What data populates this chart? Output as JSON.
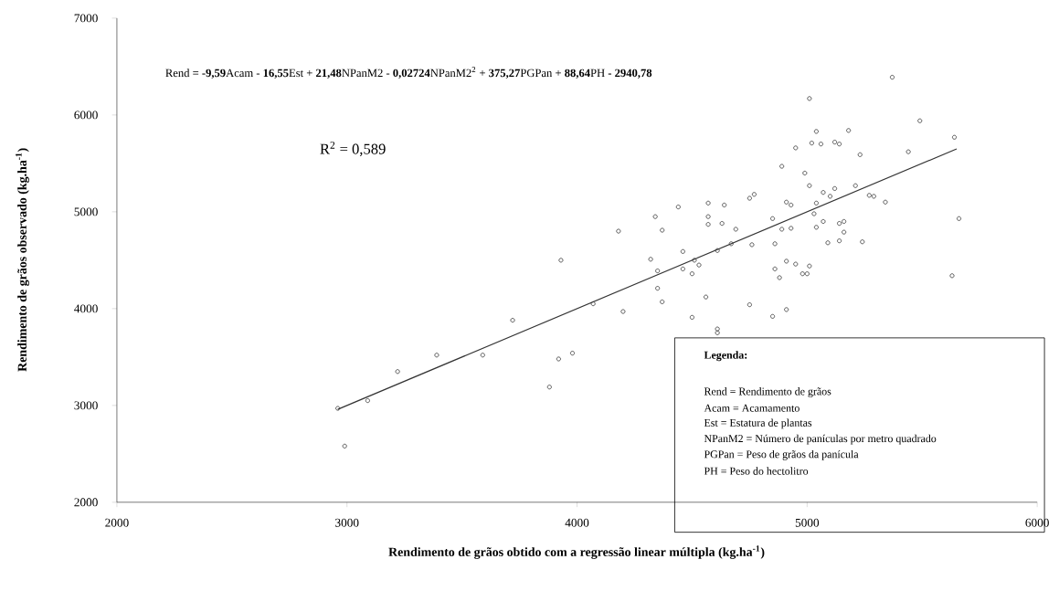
{
  "chart_data": {
    "type": "scatter",
    "xlabel": "Rendimento de grãos obtido com a regressão linear múltipla (kg.ha$^{-1}$)",
    "ylabel": "Rendimento de grãos observado (kg.ha$^{-1}$)",
    "xlim": [
      2000,
      6000
    ],
    "ylim": [
      2000,
      7000
    ],
    "xticks": [
      2000,
      3000,
      4000,
      5000,
      6000
    ],
    "yticks": [
      2000,
      3000,
      4000,
      5000,
      6000,
      7000
    ],
    "series": [
      {
        "marker": "circle",
        "color": "#333333",
        "x": [
          2960,
          2990,
          3090,
          3220,
          3390,
          3590,
          3720,
          3880,
          3920,
          3980,
          4070,
          5010,
          5040,
          5020,
          5060,
          4950,
          4890,
          4990,
          5010,
          5070,
          4750,
          4770,
          4910,
          4930,
          5040,
          4440,
          4570,
          4640,
          4340,
          4570,
          4570,
          4630,
          4850,
          5030,
          4180,
          4370,
          4690,
          4890,
          4930,
          5040,
          5070,
          3930,
          4320,
          4460,
          4610,
          4670,
          4760,
          4860,
          4510,
          4460,
          4530,
          4350,
          4500,
          4860,
          4910,
          4950,
          5010,
          4980,
          5000,
          4880,
          4350,
          4370,
          4560,
          4750,
          4910,
          4850,
          4500,
          4200,
          5120,
          5140,
          5180,
          5230,
          5490,
          5640,
          5440,
          5120,
          5100,
          5210,
          5270,
          5290,
          5340,
          5140,
          5160,
          5660,
          5160,
          5090,
          5140,
          5240,
          5630,
          4610,
          4610,
          5370
        ],
        "values": [
          2970,
          2580,
          3050,
          3350,
          3520,
          3520,
          3880,
          3190,
          3480,
          3540,
          4050,
          6170,
          5830,
          5710,
          5700,
          5660,
          5470,
          5400,
          5270,
          5200,
          5140,
          5180,
          5100,
          5070,
          5090,
          5050,
          5090,
          5070,
          4950,
          4950,
          4870,
          4880,
          4930,
          4980,
          4800,
          4810,
          4820,
          4820,
          4830,
          4840,
          4900,
          4500,
          4510,
          4590,
          4600,
          4670,
          4660,
          4670,
          4500,
          4410,
          4450,
          4390,
          4360,
          4410,
          4490,
          4460,
          4440,
          4360,
          4360,
          4320,
          4210,
          4070,
          4120,
          4040,
          3990,
          3920,
          3910,
          3970,
          5720,
          5700,
          5840,
          5590,
          5940,
          5770,
          5620,
          5240,
          5160,
          5270,
          5170,
          5160,
          5100,
          4880,
          4900,
          4930,
          4790,
          4680,
          4700,
          4690,
          4340,
          3790,
          3750,
          6390
        ]
      },
      {
        "type": "line",
        "marker": "none",
        "color": "#333333",
        "x": [
          2960,
          5650
        ],
        "values": [
          2960,
          5650
        ]
      }
    ],
    "annotations": [
      "Rend = **-9,59**Acam - **16,55**Est + **21,48**NPanM2 - **0,02724**NPanM2$^{2}$ + **375,27**PGPan + **88,64**PH **- 2940,78**",
      "R$^{2}$ = 0,589",
      "Legenda:",
      "Rend = Rendimento de grãos",
      "Acam = Acamamento",
      "Est = Estatura de plantas",
      "NPanM2 = Número de panículas por metro quadrado",
      "PGPan = Peso de grãos da panícula",
      "PH = Peso do hectolitro"
    ]
  }
}
